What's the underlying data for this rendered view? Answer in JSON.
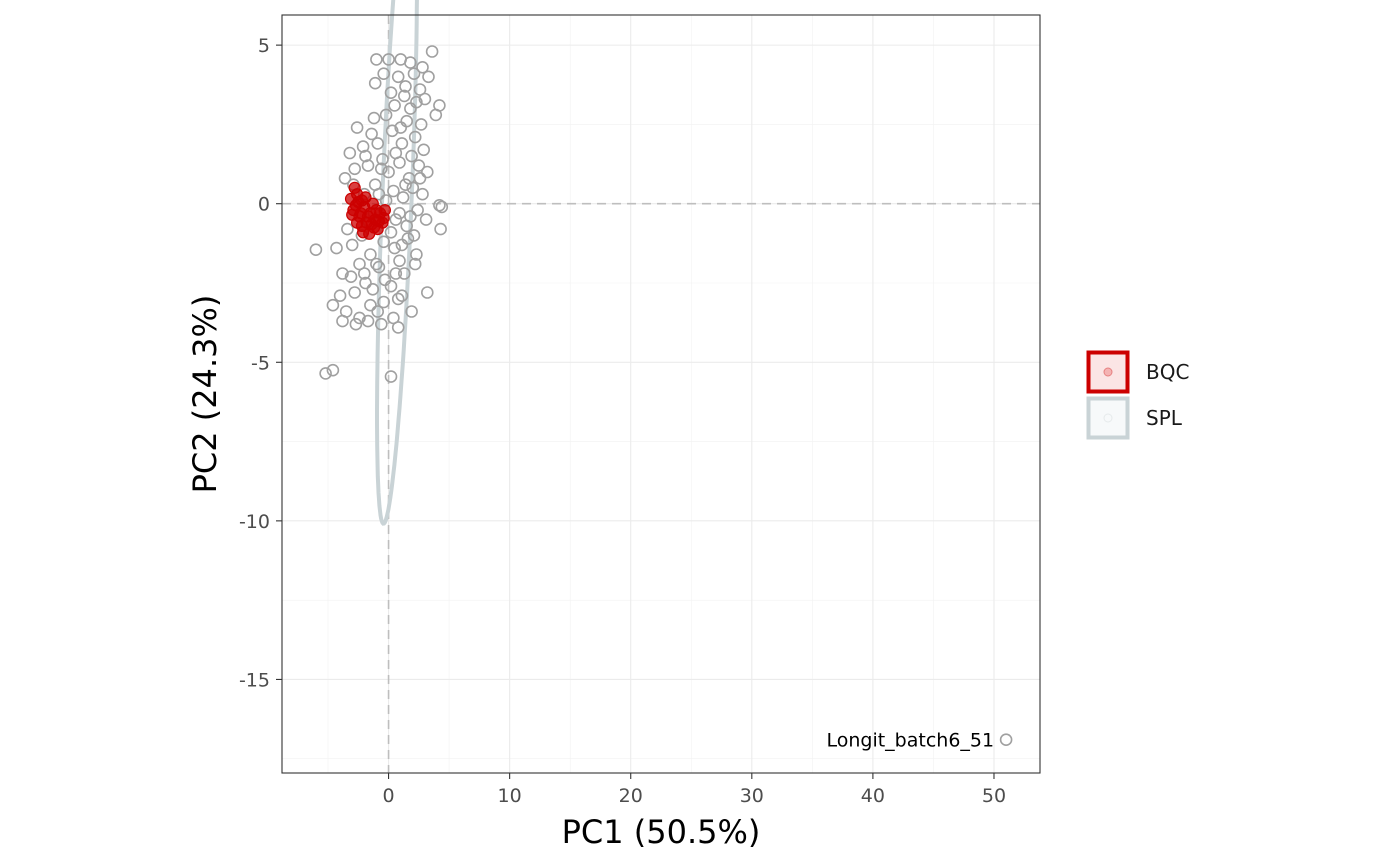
{
  "chart_data": {
    "type": "scatter",
    "xlabel": "PC1 (50.5%)",
    "ylabel": "PC2 (24.3%)",
    "xlim": [
      -8.8,
      53.8
    ],
    "ylim": [
      -17.95,
      5.95
    ],
    "x_ticks": [
      0,
      10,
      20,
      30,
      40,
      50
    ],
    "y_ticks": [
      5,
      0,
      -5,
      -10,
      -15
    ],
    "x_tick_labels": [
      "0",
      "10",
      "20",
      "30",
      "40",
      "50"
    ],
    "y_tick_labels": [
      "5",
      "0",
      "-5",
      "-10",
      "-15"
    ],
    "grid": true,
    "reference_lines": {
      "x": 0,
      "y": 0,
      "style": "dashed"
    },
    "legend": {
      "position": "right",
      "entries": [
        {
          "key": "BQC",
          "label": "BQC",
          "color": "#cc0000"
        },
        {
          "key": "SPL",
          "label": "SPL",
          "color": "#c9d3d6"
        }
      ]
    },
    "series": [
      {
        "name": "BQC",
        "marker_color": "#cc0000",
        "points": [
          [
            -3.1,
            0.15
          ],
          [
            -2.8,
            0.5
          ],
          [
            -2.6,
            0.3
          ],
          [
            -2.9,
            -0.2
          ],
          [
            -2.4,
            -0.4
          ],
          [
            -2.2,
            0.1
          ],
          [
            -2.0,
            -0.1
          ],
          [
            -1.8,
            -0.6
          ],
          [
            -1.5,
            -0.3
          ],
          [
            -1.3,
            0.0
          ],
          [
            -1.1,
            -0.5
          ],
          [
            -0.9,
            -0.8
          ],
          [
            -2.6,
            -0.6
          ],
          [
            -2.1,
            -0.9
          ],
          [
            -1.6,
            -0.95
          ],
          [
            -0.7,
            -0.3
          ],
          [
            -0.5,
            -0.6
          ],
          [
            -1.9,
            0.2
          ],
          [
            -2.3,
            -0.3
          ],
          [
            -1.4,
            -0.65
          ],
          [
            -2.7,
            -0.05
          ],
          [
            -1.0,
            -0.2
          ],
          [
            -0.4,
            -0.45
          ],
          [
            -2.5,
            0.05
          ],
          [
            -1.7,
            -0.4
          ],
          [
            -1.2,
            -0.75
          ],
          [
            -0.8,
            -0.55
          ],
          [
            -3.0,
            -0.35
          ],
          [
            -2.2,
            -0.7
          ],
          [
            -0.3,
            -0.2
          ]
        ]
      },
      {
        "name": "SPL",
        "marker_color": "#999999",
        "ellipse": {
          "center": [
            0.7,
            0.25
          ],
          "semi_axes": [
            10.7,
            2.8
          ],
          "angle_deg": 74.5,
          "color": "#c9d3d6"
        },
        "points": [
          [
            -1.0,
            4.55
          ],
          [
            0.0,
            4.55
          ],
          [
            1.0,
            4.55
          ],
          [
            1.8,
            4.45
          ],
          [
            3.6,
            4.8
          ],
          [
            -0.4,
            4.1
          ],
          [
            2.1,
            4.1
          ],
          [
            2.8,
            4.3
          ],
          [
            3.3,
            4.0
          ],
          [
            0.2,
            3.5
          ],
          [
            1.3,
            3.4
          ],
          [
            2.6,
            3.6
          ],
          [
            4.2,
            3.1
          ],
          [
            3.9,
            2.8
          ],
          [
            -1.2,
            2.7
          ],
          [
            0.5,
            3.1
          ],
          [
            1.8,
            3.0
          ],
          [
            3.0,
            3.3
          ],
          [
            -1.4,
            2.2
          ],
          [
            -2.1,
            1.8
          ],
          [
            -3.2,
            1.6
          ],
          [
            -0.9,
            1.9
          ],
          [
            0.3,
            2.3
          ],
          [
            1.5,
            2.6
          ],
          [
            2.2,
            2.1
          ],
          [
            2.9,
            1.7
          ],
          [
            -2.6,
            2.4
          ],
          [
            -0.5,
            1.4
          ],
          [
            0.6,
            1.6
          ],
          [
            1.1,
            1.9
          ],
          [
            2.5,
            1.2
          ],
          [
            -1.7,
            1.2
          ],
          [
            -2.8,
            1.1
          ],
          [
            3.2,
            1.0
          ],
          [
            0.0,
            1.0
          ],
          [
            1.7,
            0.8
          ],
          [
            -3.6,
            0.8
          ],
          [
            -1.1,
            0.6
          ],
          [
            0.4,
            0.4
          ],
          [
            2.0,
            0.5
          ],
          [
            2.8,
            0.3
          ],
          [
            4.2,
            -0.05
          ],
          [
            4.4,
            -0.1
          ],
          [
            -2.0,
            0.3
          ],
          [
            -0.2,
            0.1
          ],
          [
            1.2,
            0.2
          ],
          [
            0.9,
            -0.3
          ],
          [
            2.4,
            -0.2
          ],
          [
            3.1,
            -0.5
          ],
          [
            -3.4,
            -0.8
          ],
          [
            -1.6,
            -0.6
          ],
          [
            0.2,
            -0.9
          ],
          [
            1.5,
            -0.7
          ],
          [
            2.1,
            -1.0
          ],
          [
            4.3,
            -0.8
          ],
          [
            -6.0,
            -1.45
          ],
          [
            -4.3,
            -1.4
          ],
          [
            -3.0,
            -1.3
          ],
          [
            -1.5,
            -1.6
          ],
          [
            0.5,
            -1.4
          ],
          [
            1.6,
            -1.1
          ],
          [
            -2.4,
            -1.9
          ],
          [
            -0.8,
            -2.0
          ],
          [
            0.9,
            -1.8
          ],
          [
            2.3,
            -1.6
          ],
          [
            -3.8,
            -2.2
          ],
          [
            -3.1,
            -2.3
          ],
          [
            -1.9,
            -2.5
          ],
          [
            -0.3,
            -2.4
          ],
          [
            1.3,
            -2.2
          ],
          [
            2.2,
            -1.9
          ],
          [
            -4.0,
            -2.9
          ],
          [
            -2.8,
            -2.8
          ],
          [
            -1.3,
            -2.7
          ],
          [
            0.2,
            -2.6
          ],
          [
            1.1,
            -2.9
          ],
          [
            3.2,
            -2.8
          ],
          [
            -4.6,
            -3.2
          ],
          [
            -3.5,
            -3.4
          ],
          [
            -2.4,
            -3.6
          ],
          [
            -1.5,
            -3.2
          ],
          [
            -0.4,
            -3.1
          ],
          [
            0.8,
            -3.0
          ],
          [
            1.9,
            -3.4
          ],
          [
            -3.8,
            -3.7
          ],
          [
            -2.7,
            -3.8
          ],
          [
            -1.7,
            -3.7
          ],
          [
            -0.6,
            -3.8
          ],
          [
            0.8,
            -3.9
          ],
          [
            -5.2,
            -5.35
          ],
          [
            -4.6,
            -5.25
          ],
          [
            0.2,
            -5.45
          ],
          [
            -1.1,
            3.8
          ],
          [
            0.8,
            4.0
          ],
          [
            1.4,
            3.7
          ],
          [
            2.3,
            3.2
          ],
          [
            -0.2,
            2.8
          ],
          [
            1.0,
            2.4
          ],
          [
            2.7,
            2.5
          ],
          [
            -1.9,
            1.5
          ],
          [
            -0.6,
            1.1
          ],
          [
            0.9,
            1.3
          ],
          [
            1.9,
            1.5
          ],
          [
            -2.9,
            0.6
          ],
          [
            -0.8,
            0.3
          ],
          [
            1.4,
            0.6
          ],
          [
            2.6,
            0.8
          ],
          [
            -1.2,
            -0.3
          ],
          [
            0.6,
            -0.5
          ],
          [
            1.8,
            -0.4
          ],
          [
            -2.2,
            -1.0
          ],
          [
            -0.4,
            -1.2
          ],
          [
            1.1,
            -1.3
          ],
          [
            -1.0,
            -1.9
          ],
          [
            0.6,
            -2.2
          ],
          [
            -2.0,
            -2.2
          ],
          [
            -0.9,
            -3.4
          ],
          [
            0.4,
            -3.6
          ],
          [
            51.0,
            -16.9
          ]
        ]
      }
    ],
    "annotations": [
      {
        "text": "Longit_batch6_51",
        "x": 51.0,
        "y": -16.9,
        "align": "left-of-point"
      }
    ]
  }
}
